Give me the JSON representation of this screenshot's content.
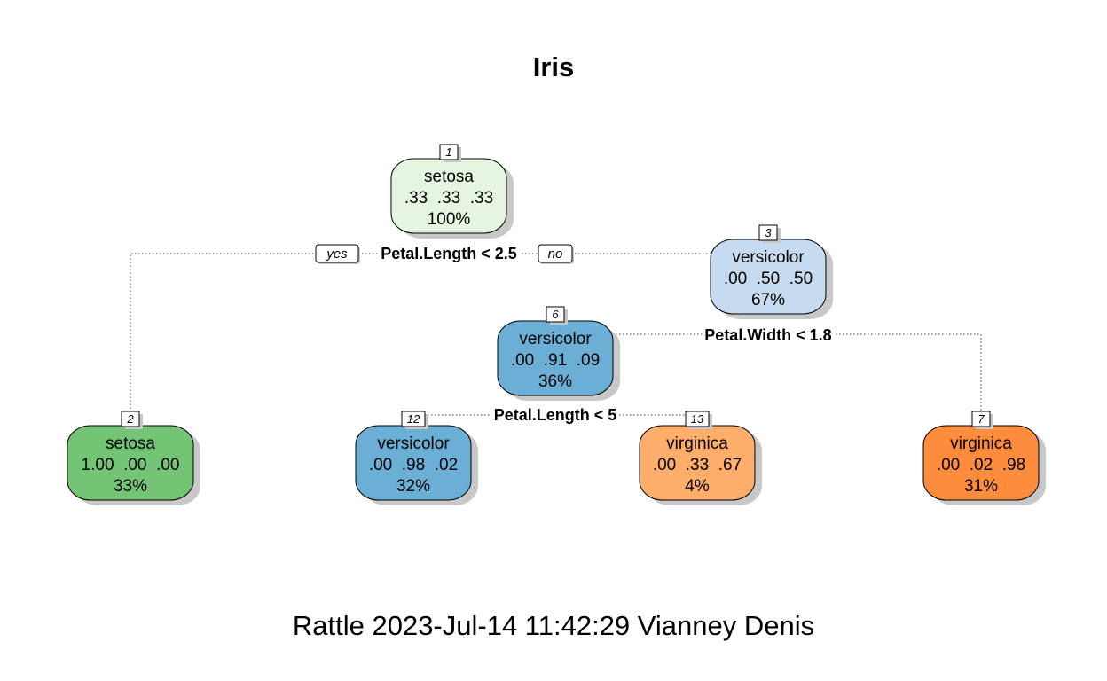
{
  "title": "Iris",
  "footer": "Rattle 2023-Jul-14 11:42:29 Vianney Denis",
  "branch_labels": {
    "yes": "yes",
    "no": "no"
  },
  "colors": {
    "setosa_light": "#e5f5e0",
    "setosa": "#74c476",
    "versicolor_light": "#c6dbef",
    "versicolor": "#6baed6",
    "virginica_light": "#fdae6b",
    "virginica": "#fd8d3c",
    "shadow": "#c8c8c8"
  },
  "nodes": [
    {
      "id": "1",
      "class": "setosa",
      "probs": ".33  .33  .33",
      "pct": "100%",
      "color": "setosa_light"
    },
    {
      "id": "2",
      "class": "setosa",
      "probs": "1.00  .00  .00",
      "pct": "33%",
      "color": "setosa"
    },
    {
      "id": "3",
      "class": "versicolor",
      "probs": ".00  .50  .50",
      "pct": "67%",
      "color": "versicolor_light"
    },
    {
      "id": "6",
      "class": "versicolor",
      "probs": ".00  .91  .09",
      "pct": "36%",
      "color": "versicolor"
    },
    {
      "id": "7",
      "class": "virginica",
      "probs": ".00  .02  .98",
      "pct": "31%",
      "color": "virginica"
    },
    {
      "id": "12",
      "class": "versicolor",
      "probs": ".00  .98  .02",
      "pct": "32%",
      "color": "versicolor"
    },
    {
      "id": "13",
      "class": "virginica",
      "probs": ".00  .33  .67",
      "pct": "4%",
      "color": "virginica_light"
    }
  ],
  "splits": [
    {
      "node": "1",
      "label": "Petal.Length < 2.5"
    },
    {
      "node": "3",
      "label": "Petal.Width < 1.8"
    },
    {
      "node": "6",
      "label": "Petal.Length < 5"
    }
  ]
}
